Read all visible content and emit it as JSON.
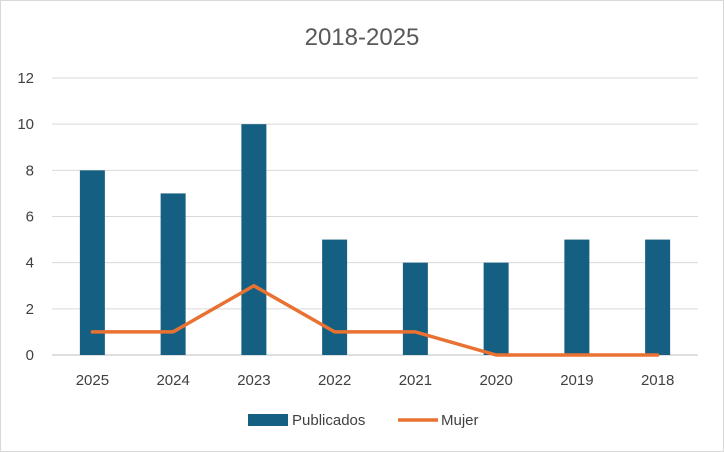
{
  "chart_data": {
    "type": "bar",
    "title": "2018-2025",
    "xlabel": "",
    "ylabel": "",
    "categories": [
      "2025",
      "2024",
      "2023",
      "2022",
      "2021",
      "2020",
      "2019",
      "2018"
    ],
    "ylim": [
      0,
      12
    ],
    "yticks": [
      "0",
      "2",
      "4",
      "6",
      "8",
      "10",
      "12"
    ],
    "grid": true,
    "legend": "bottom",
    "series": [
      {
        "name": "Publicados",
        "type": "bar",
        "color": "#156082",
        "values": [
          8,
          7,
          10,
          5,
          4,
          4,
          5,
          5
        ]
      },
      {
        "name": "Mujer",
        "type": "line",
        "color": "#E97132",
        "values": [
          1,
          1,
          3,
          1,
          1,
          0,
          0,
          0
        ]
      }
    ]
  }
}
